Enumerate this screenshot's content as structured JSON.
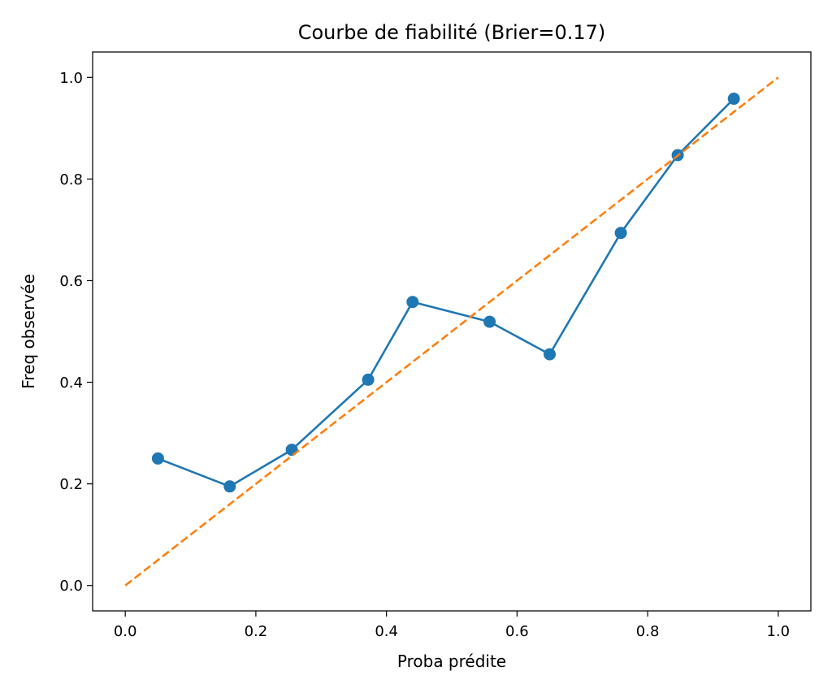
{
  "chart_data": {
    "type": "line",
    "title": "Courbe de fiabilité (Brier=0.17)",
    "xlabel": "Proba prédite",
    "ylabel": "Freq observée",
    "xlim": [
      -0.05,
      1.05
    ],
    "ylim": [
      -0.05,
      1.05
    ],
    "xticks": [
      "0.0",
      "0.2",
      "0.4",
      "0.6",
      "0.8",
      "1.0"
    ],
    "yticks": [
      "0.0",
      "0.2",
      "0.4",
      "0.6",
      "0.8",
      "1.0"
    ],
    "grid": false,
    "legend": "none",
    "series": [
      {
        "style": "solid-with-markers",
        "color": "#1f77b4",
        "x": [
          0.05,
          0.16,
          0.255,
          0.372,
          0.44,
          0.558,
          0.65,
          0.759,
          0.846,
          0.932
        ],
        "y": [
          0.25,
          0.195,
          0.267,
          0.405,
          0.558,
          0.519,
          0.455,
          0.694,
          0.847,
          0.958
        ]
      },
      {
        "style": "dashed",
        "color": "#ff7f0e",
        "x": [
          0.0,
          1.0
        ],
        "y": [
          0.0,
          1.0
        ]
      }
    ]
  }
}
